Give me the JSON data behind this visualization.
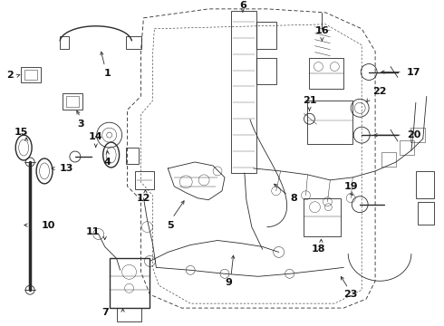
{
  "bg_color": "#ffffff",
  "line_color": "#2a2a2a",
  "text_color": "#111111",
  "fig_width": 4.9,
  "fig_height": 3.6,
  "dpi": 100
}
